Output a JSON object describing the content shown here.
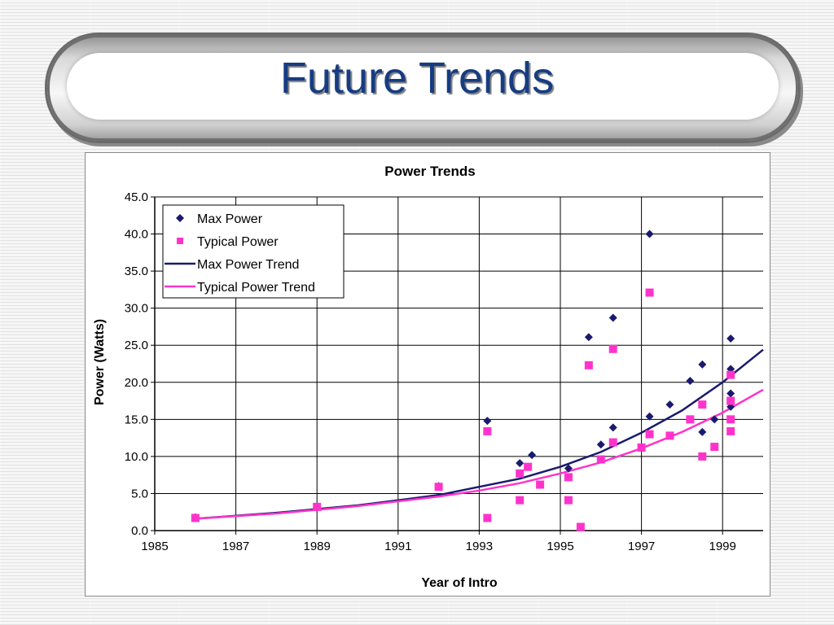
{
  "slide": {
    "title": "Future Trends"
  },
  "chart_data": {
    "type": "scatter",
    "title": "Power Trends",
    "xlabel": "Year of Intro",
    "ylabel": "Power (Watts)",
    "xlim": [
      1985,
      2000
    ],
    "ylim": [
      0,
      45
    ],
    "x_ticks": [
      1985,
      1987,
      1989,
      1991,
      1993,
      1995,
      1997,
      1999
    ],
    "x_tick_labels": [
      "1985",
      "1987",
      "1989",
      "1991",
      "1993",
      "1995",
      "1997",
      "1999"
    ],
    "y_ticks": [
      0,
      5,
      10,
      15,
      20,
      25,
      30,
      35,
      40,
      45
    ],
    "y_tick_labels": [
      "0.0",
      "5.0",
      "10.0",
      "15.0",
      "20.0",
      "25.0",
      "30.0",
      "35.0",
      "40.0",
      "45.0"
    ],
    "grid": true,
    "legend_position": "top-left",
    "series": [
      {
        "name": "Max Power",
        "kind": "points",
        "marker": "diamond",
        "color": "#1a1a6e",
        "points": [
          [
            1986,
            1.8
          ],
          [
            1989,
            3.1
          ],
          [
            1992,
            6.0
          ],
          [
            1993.2,
            14.8
          ],
          [
            1993.2,
            1.7
          ],
          [
            1994,
            9.1
          ],
          [
            1994.3,
            10.2
          ],
          [
            1995.2,
            8.4
          ],
          [
            1995.7,
            26.1
          ],
          [
            1996,
            11.6
          ],
          [
            1996.3,
            13.9
          ],
          [
            1996.3,
            28.7
          ],
          [
            1997.2,
            40.0
          ],
          [
            1997.2,
            15.4
          ],
          [
            1997.7,
            17.0
          ],
          [
            1998.2,
            20.2
          ],
          [
            1998.5,
            22.4
          ],
          [
            1998.5,
            13.3
          ],
          [
            1998.8,
            15.0
          ],
          [
            1999.2,
            25.9
          ],
          [
            1999.2,
            21.8
          ],
          [
            1999.2,
            18.5
          ],
          [
            1999.2,
            16.7
          ]
        ]
      },
      {
        "name": "Typical Power",
        "kind": "points",
        "marker": "square",
        "color": "#ff33cc",
        "points": [
          [
            1986,
            1.7
          ],
          [
            1989,
            3.2
          ],
          [
            1992,
            5.9
          ],
          [
            1993.2,
            13.4
          ],
          [
            1993.2,
            1.7
          ],
          [
            1994,
            7.7
          ],
          [
            1994,
            4.1
          ],
          [
            1994.2,
            8.6
          ],
          [
            1994.5,
            6.2
          ],
          [
            1995.2,
            7.2
          ],
          [
            1995.2,
            4.1
          ],
          [
            1995.5,
            0.5
          ],
          [
            1995.7,
            22.3
          ],
          [
            1996,
            9.6
          ],
          [
            1996.3,
            11.9
          ],
          [
            1996.3,
            24.5
          ],
          [
            1997,
            11.2
          ],
          [
            1997.2,
            13.0
          ],
          [
            1997.2,
            32.1
          ],
          [
            1997.7,
            12.8
          ],
          [
            1998.2,
            15.0
          ],
          [
            1998.5,
            17.0
          ],
          [
            1998.5,
            10.0
          ],
          [
            1998.8,
            11.3
          ],
          [
            1999.2,
            21.0
          ],
          [
            1999.2,
            17.5
          ],
          [
            1999.2,
            15.0
          ],
          [
            1999.2,
            13.4
          ]
        ]
      },
      {
        "name": "Max Power Trend",
        "kind": "line",
        "color": "#1a1a6e",
        "points": [
          [
            1986,
            1.6
          ],
          [
            1988,
            2.4
          ],
          [
            1990,
            3.4
          ],
          [
            1992,
            4.8
          ],
          [
            1993,
            5.9
          ],
          [
            1994,
            7.0
          ],
          [
            1995,
            8.6
          ],
          [
            1996,
            10.6
          ],
          [
            1997,
            13.2
          ],
          [
            1998,
            16.2
          ],
          [
            1999,
            20.0
          ],
          [
            2000,
            24.4
          ]
        ]
      },
      {
        "name": "Typical Power Trend",
        "kind": "line",
        "color": "#ff33cc",
        "points": [
          [
            1986,
            1.6
          ],
          [
            1988,
            2.3
          ],
          [
            1990,
            3.3
          ],
          [
            1992,
            4.6
          ],
          [
            1993,
            5.4
          ],
          [
            1994,
            6.4
          ],
          [
            1995,
            7.7
          ],
          [
            1996,
            9.2
          ],
          [
            1997,
            11.1
          ],
          [
            1998,
            13.3
          ],
          [
            1999,
            15.9
          ],
          [
            2000,
            19.0
          ]
        ]
      }
    ]
  }
}
